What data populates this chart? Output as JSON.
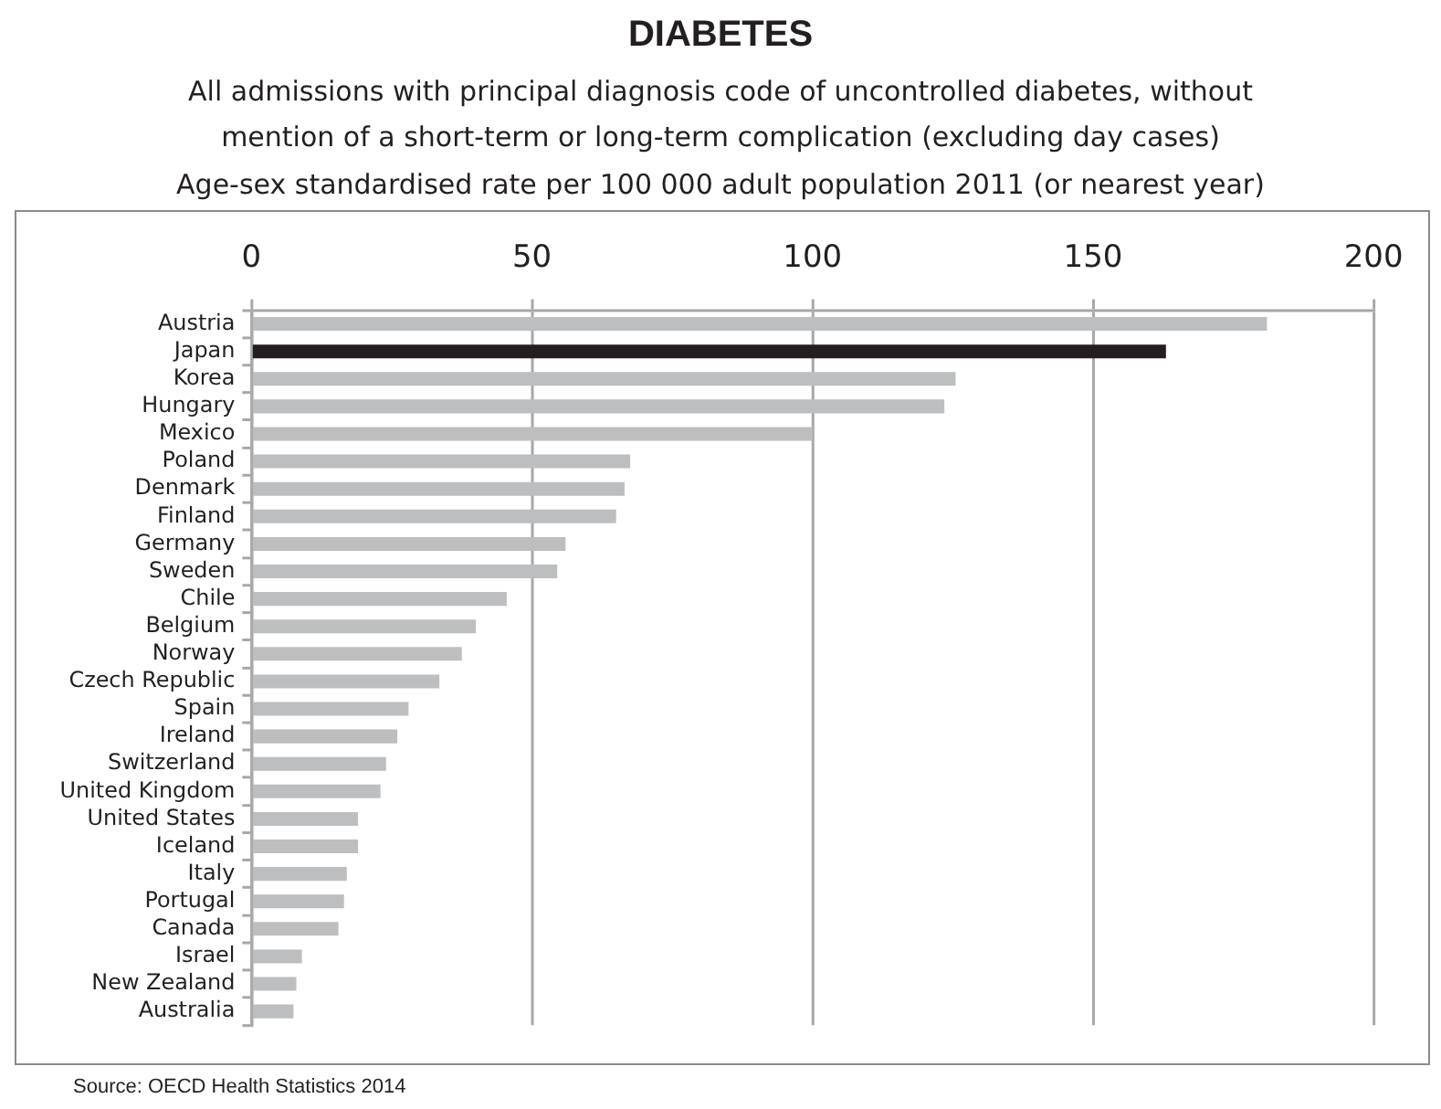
{
  "chart_data": {
    "type": "bar",
    "orientation": "horizontal",
    "title": "DIABETES",
    "subtitle": "All admissions with principal diagnosis code of uncontrolled diabetes, without\nmention of a short-term or long-term complication (excluding day cases)",
    "xlabel": "Age-sex standardised rate per 100 000 adult population 2011 (or nearest year)",
    "categories": [
      "Austria",
      "Japan",
      "Korea",
      "Hungary",
      "Mexico",
      "Poland",
      "Denmark",
      "Finland",
      "Germany",
      "Sweden",
      "Chile",
      "Belgium",
      "Norway",
      "Czech Republic",
      "Spain",
      "Ireland",
      "Switzerland",
      "United Kingdom",
      "United States",
      "Iceland",
      "Italy",
      "Portugal",
      "Canada",
      "Israel",
      "New Zealand",
      "Australia"
    ],
    "values": [
      181,
      163,
      125.5,
      123.5,
      100,
      67.5,
      66.5,
      65,
      56,
      54.5,
      45.5,
      40,
      37.5,
      33.5,
      28,
      26,
      24,
      23,
      19,
      19,
      17,
      16.5,
      15.5,
      9,
      8,
      7.5
    ],
    "colors": [
      "#bcbec0",
      "#231f20",
      "#bcbec0",
      "#bcbec0",
      "#bcbec0",
      "#bcbec0",
      "#bcbec0",
      "#bcbec0",
      "#bcbec0",
      "#bcbec0",
      "#bcbec0",
      "#bcbec0",
      "#bcbec0",
      "#bcbec0",
      "#bcbec0",
      "#bcbec0",
      "#bcbec0",
      "#bcbec0",
      "#bcbec0",
      "#bcbec0",
      "#bcbec0",
      "#bcbec0",
      "#bcbec0",
      "#bcbec0",
      "#bcbec0",
      "#bcbec0"
    ],
    "xlim": [
      0,
      200
    ],
    "xticks": [
      0,
      50,
      100,
      150,
      200
    ],
    "grid": "x",
    "legend": false,
    "annotations": [
      "Source: OECD Health Statistics 2014"
    ]
  }
}
